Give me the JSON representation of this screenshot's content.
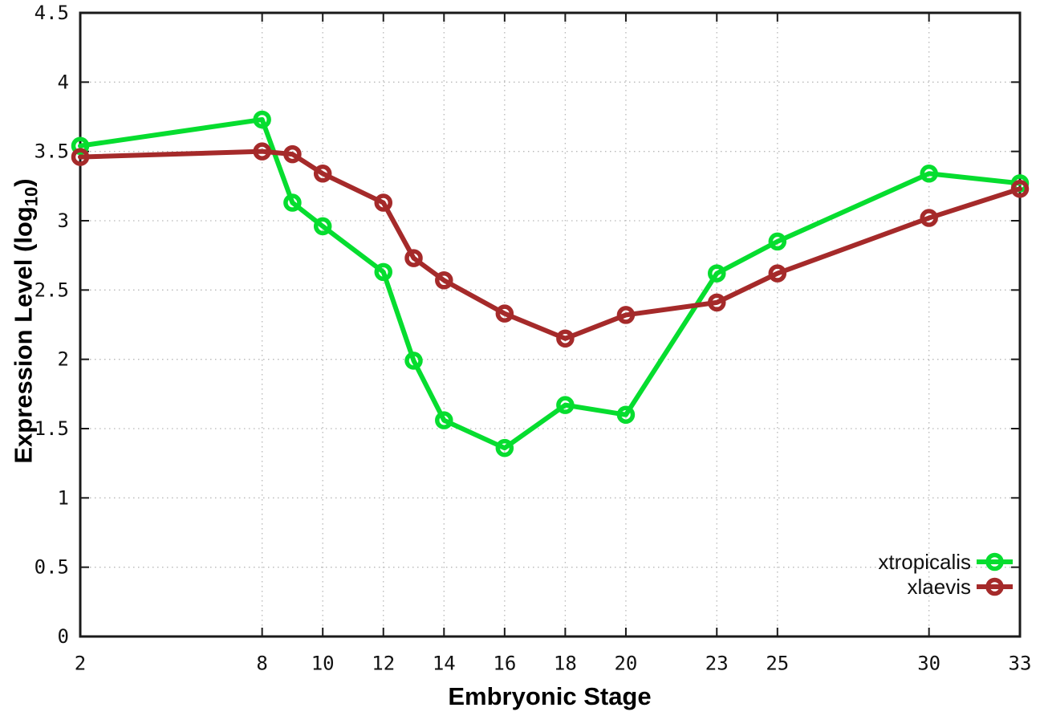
{
  "chart_data": {
    "type": "line",
    "title": "",
    "xlabel": "Embryonic Stage",
    "ylabel": "Expression Level (log10)",
    "ylabel_prefix": "Expression Level (log",
    "ylabel_sub": "10",
    "ylabel_suffix": ")",
    "x": [
      2,
      8,
      9,
      10,
      12,
      13,
      14,
      16,
      18,
      20,
      23,
      25,
      30,
      33
    ],
    "series": [
      {
        "name": "xtropicalis",
        "color": "#06dd2f",
        "marker": "open-circle",
        "values": [
          3.54,
          3.73,
          3.13,
          2.96,
          2.63,
          1.99,
          1.56,
          1.36,
          1.67,
          1.6,
          2.62,
          2.85,
          3.34,
          3.27
        ]
      },
      {
        "name": "xlaevis",
        "color": "#a52a2a",
        "marker": "open-circle",
        "values": [
          3.46,
          3.5,
          3.48,
          3.34,
          3.13,
          2.73,
          2.57,
          2.33,
          2.15,
          2.32,
          2.41,
          2.62,
          3.02,
          3.23
        ]
      }
    ],
    "xlim": [
      2,
      33
    ],
    "ylim": [
      0,
      4.5
    ],
    "xticks": [
      2,
      8,
      10,
      12,
      14,
      16,
      18,
      20,
      23,
      25,
      30,
      33
    ],
    "xtick_labels": [
      "2",
      "8",
      "10",
      "12",
      "14",
      "16",
      "18",
      "20",
      "23",
      "25",
      "30",
      "33"
    ],
    "yticks": [
      0,
      0.5,
      1,
      1.5,
      2,
      2.5,
      3,
      3.5,
      4,
      4.5
    ],
    "ytick_labels": [
      "0",
      "0.5",
      "1",
      "1.5",
      "2",
      "2.5",
      "3",
      "3.5",
      "4",
      "4.5"
    ],
    "grid": true,
    "legend_position": "bottom-right",
    "colors": {
      "background": "#ffffff",
      "border": "#1a1a1a",
      "grid": "#b8b8b8",
      "text": "#111111"
    }
  }
}
